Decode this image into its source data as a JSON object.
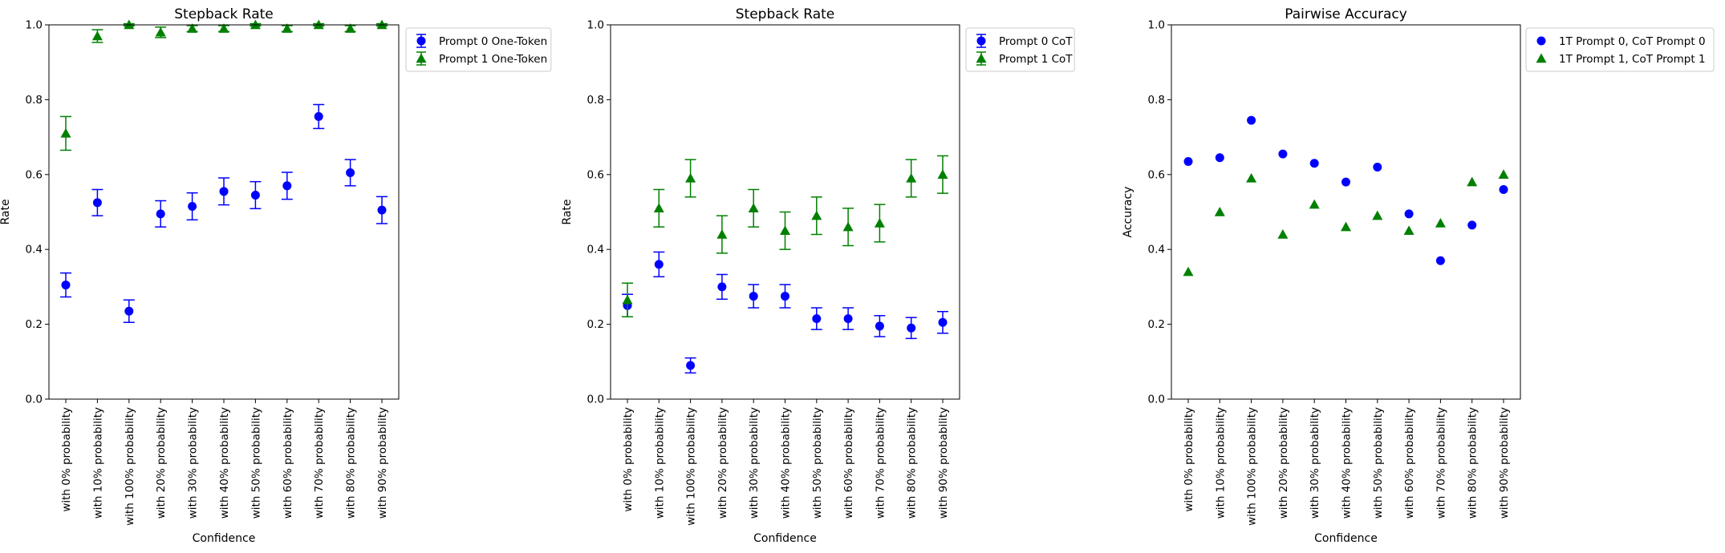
{
  "figure": {
    "background": "#ffffff"
  },
  "style": {
    "blue": "#0000ff",
    "green": "#008000"
  },
  "chart_data": [
    {
      "type": "scatter",
      "title": "Stepback Rate",
      "xlabel": "Confidence",
      "ylabel": "Rate",
      "ylim": [
        0,
        1
      ],
      "yticks": [
        "0.0",
        "0.2",
        "0.4",
        "0.6",
        "0.8",
        "1.0"
      ],
      "error_bars": true,
      "legend_placement": "outside-right-top",
      "categories": [
        "with 0% probability",
        "with 10% probability",
        "with 100% probability",
        "with 20% probability",
        "with 30% probability",
        "with 40% probability",
        "with 50% probability",
        "with 60% probability",
        "with 70% probability",
        "with 80% probability",
        "with 90% probability"
      ],
      "series": [
        {
          "name": "Prompt 0 One-Token",
          "marker": "circle",
          "color": "#0000ff",
          "values": [
            0.305,
            0.525,
            0.235,
            0.495,
            0.515,
            0.555,
            0.545,
            0.57,
            0.755,
            0.605,
            0.505
          ],
          "errors": [
            0.032,
            0.035,
            0.03,
            0.035,
            0.036,
            0.036,
            0.036,
            0.036,
            0.032,
            0.035,
            0.036
          ]
        },
        {
          "name": "Prompt 1 One-Token",
          "marker": "triangle",
          "color": "#008000",
          "values": [
            0.71,
            0.97,
            1.0,
            0.98,
            0.99,
            0.99,
            1.0,
            0.99,
            1.0,
            0.99,
            1.0
          ],
          "errors": [
            0.045,
            0.017,
            0.003,
            0.014,
            0.008,
            0.008,
            0.003,
            0.008,
            0.003,
            0.008,
            0.003
          ]
        }
      ]
    },
    {
      "type": "scatter",
      "title": "Stepback Rate",
      "xlabel": "Confidence",
      "ylabel": "Rate",
      "ylim": [
        0,
        1
      ],
      "yticks": [
        "0.0",
        "0.2",
        "0.4",
        "0.6",
        "0.8",
        "1.0"
      ],
      "error_bars": true,
      "legend_placement": "outside-right-top",
      "categories": [
        "with 0% probability",
        "with 10% probability",
        "with 100% probability",
        "with 20% probability",
        "with 30% probability",
        "with 40% probability",
        "with 50% probability",
        "with 60% probability",
        "with 70% probability",
        "with 80% probability",
        "with 90% probability"
      ],
      "series": [
        {
          "name": "Prompt 0 CoT",
          "marker": "circle",
          "color": "#0000ff",
          "values": [
            0.25,
            0.36,
            0.09,
            0.3,
            0.275,
            0.275,
            0.215,
            0.215,
            0.195,
            0.19,
            0.205
          ],
          "errors": [
            0.03,
            0.033,
            0.02,
            0.033,
            0.031,
            0.031,
            0.029,
            0.029,
            0.028,
            0.028,
            0.029
          ]
        },
        {
          "name": "Prompt 1 CoT",
          "marker": "triangle",
          "color": "#008000",
          "values": [
            0.265,
            0.51,
            0.59,
            0.44,
            0.51,
            0.45,
            0.49,
            0.46,
            0.47,
            0.59,
            0.6
          ],
          "errors": [
            0.045,
            0.05,
            0.05,
            0.05,
            0.05,
            0.05,
            0.05,
            0.05,
            0.05,
            0.05,
            0.05
          ]
        }
      ]
    },
    {
      "type": "scatter",
      "title": "Pairwise Accuracy",
      "xlabel": "Confidence",
      "ylabel": "Accuracy",
      "ylim": [
        0,
        1
      ],
      "yticks": [
        "0.0",
        "0.2",
        "0.4",
        "0.6",
        "0.8",
        "1.0"
      ],
      "error_bars": false,
      "legend_placement": "outside-right-top",
      "categories": [
        "with 0% probability",
        "with 10% probability",
        "with 100% probability",
        "with 20% probability",
        "with 30% probability",
        "with 40% probability",
        "with 50% probability",
        "with 60% probability",
        "with 70% probability",
        "with 80% probability",
        "with 90% probability"
      ],
      "series": [
        {
          "name": "1T Prompt 0, CoT Prompt 0",
          "marker": "circle",
          "color": "#0000ff",
          "values": [
            0.635,
            0.645,
            0.745,
            0.655,
            0.63,
            0.58,
            0.62,
            0.495,
            0.37,
            0.465,
            0.56
          ]
        },
        {
          "name": "1T Prompt 1, CoT Prompt 1",
          "marker": "triangle",
          "color": "#008000",
          "values": [
            0.34,
            0.5,
            0.59,
            0.44,
            0.52,
            0.46,
            0.49,
            0.45,
            0.47,
            0.58,
            0.6
          ]
        }
      ]
    }
  ]
}
